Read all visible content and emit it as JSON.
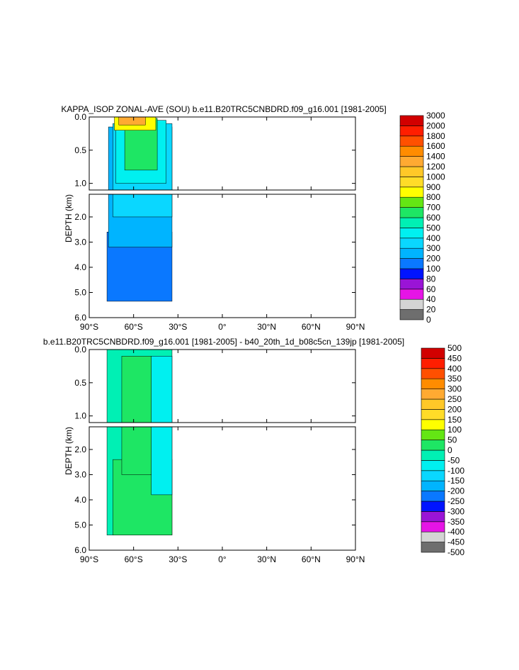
{
  "chart_data": [
    {
      "type": "contour",
      "title": "KAPPA_ISOP ZONAL-AVE (SOU) b.e11.B20TRC5CNBDRD.f09_g16.001 [1981-2005]",
      "ylabel": "DEPTH (km)",
      "xlabel": "",
      "x_ticks": [
        "90°S",
        "60°S",
        "30°S",
        "0°",
        "30°N",
        "60°N",
        "90°N"
      ],
      "x_range": [
        -90,
        90
      ],
      "y_ticks_upper": [
        "0.0",
        "0.5",
        "1.0"
      ],
      "y_ticks_lower": [
        "2.0",
        "3.0",
        "4.0",
        "5.0",
        "6.0"
      ],
      "y_range_upper": [
        0,
        1.1
      ],
      "y_range_lower": [
        1.1,
        6.0
      ],
      "data_extent": {
        "lat_min": -78,
        "lat_max": -34
      },
      "colorbar_labels": [
        "0",
        "20",
        "40",
        "60",
        "80",
        "100",
        "200",
        "300",
        "400",
        "500",
        "600",
        "700",
        "800",
        "900",
        "1000",
        "1200",
        "1400",
        "1600",
        "1800",
        "2000",
        "3000"
      ],
      "colorbar_colors": [
        "#6e6e6e",
        "#d4d4d4",
        "#e614e6",
        "#9a14d6",
        "#0014ff",
        "#0a78ff",
        "#00b4ff",
        "#0ad7ff",
        "#00f0f0",
        "#00f0b4",
        "#1ee664",
        "#64e614",
        "#ffff00",
        "#ffdc28",
        "#ffc828",
        "#ffaa32",
        "#ff8c00",
        "#ff5000",
        "#ff1e00",
        "#d20000"
      ],
      "regions": [
        {
          "level": 200,
          "color": "#0a78ff",
          "ymin": 2.6,
          "ymax": 5.35,
          "latmin": -78,
          "latmax": -34
        },
        {
          "level": 300,
          "color": "#00b4ff",
          "ymin": 0.15,
          "ymax": 3.2,
          "latmin": -77,
          "latmax": -34
        },
        {
          "level": 400,
          "color": "#0ad7ff",
          "ymin": 0.1,
          "ymax": 2.0,
          "latmin": -74,
          "latmax": -34
        },
        {
          "level": 500,
          "color": "#00f0f0",
          "ymin": 0.05,
          "ymax": 1.0,
          "latmin": -72,
          "latmax": -38
        },
        {
          "level": 600,
          "color": "#1ee664",
          "ymin": 0.02,
          "ymax": 0.8,
          "latmin": -66,
          "latmax": -44
        },
        {
          "level": 800,
          "color": "#ffff00",
          "ymin": 0.0,
          "ymax": 0.2,
          "latmin": -73,
          "latmax": -45
        },
        {
          "level": 1200,
          "color": "#ffaa32",
          "ymin": 0.0,
          "ymax": 0.12,
          "latmin": -70,
          "latmax": -52
        }
      ]
    },
    {
      "type": "contour",
      "title": "b.e11.B20TRC5CNBDRD.f09_g16.001 [1981-2005] - b40_20th_1d_b08c5cn_139jp [1981-2005]",
      "ylabel": "DEPTH (km)",
      "xlabel": "",
      "x_ticks": [
        "90°S",
        "60°S",
        "30°S",
        "0°",
        "30°N",
        "60°N",
        "90°N"
      ],
      "x_range": [
        -90,
        90
      ],
      "y_ticks_upper": [
        "0.0",
        "0.5",
        "1.0"
      ],
      "y_ticks_lower": [
        "2.0",
        "3.0",
        "4.0",
        "5.0",
        "6.0"
      ],
      "y_range_upper": [
        0,
        1.1
      ],
      "y_range_lower": [
        1.1,
        6.0
      ],
      "data_extent": {
        "lat_min": -78,
        "lat_max": -34
      },
      "colorbar_labels": [
        "-500",
        "-450",
        "-400",
        "-350",
        "-300",
        "-250",
        "-200",
        "-150",
        "-100",
        "-50",
        "0",
        "50",
        "100",
        "150",
        "200",
        "250",
        "300",
        "350",
        "400",
        "450",
        "500"
      ],
      "colorbar_colors": [
        "#6e6e6e",
        "#d4d4d4",
        "#e614e6",
        "#9a14d6",
        "#0014ff",
        "#0a78ff",
        "#00b4ff",
        "#0ad7ff",
        "#00f0f0",
        "#00f0b4",
        "#1ee664",
        "#64e614",
        "#ffff00",
        "#ffdc28",
        "#ffc828",
        "#ffaa32",
        "#ff8c00",
        "#ff5000",
        "#ff1e00",
        "#d20000"
      ],
      "regions": [
        {
          "level": 0,
          "color": "#00f0b4",
          "ymin": 0.0,
          "ymax": 5.4,
          "latmin": -78,
          "latmax": -34
        },
        {
          "level": 50,
          "color": "#1ee664",
          "ymin": 2.4,
          "ymax": 5.4,
          "latmin": -74,
          "latmax": -34
        },
        {
          "level": 50,
          "color": "#1ee664",
          "ymin": 0.1,
          "ymax": 3.0,
          "latmin": -68,
          "latmax": -48
        },
        {
          "level": -50,
          "color": "#00f0f0",
          "ymin": 0.1,
          "ymax": 3.8,
          "latmin": -48,
          "latmax": -34
        }
      ]
    }
  ]
}
